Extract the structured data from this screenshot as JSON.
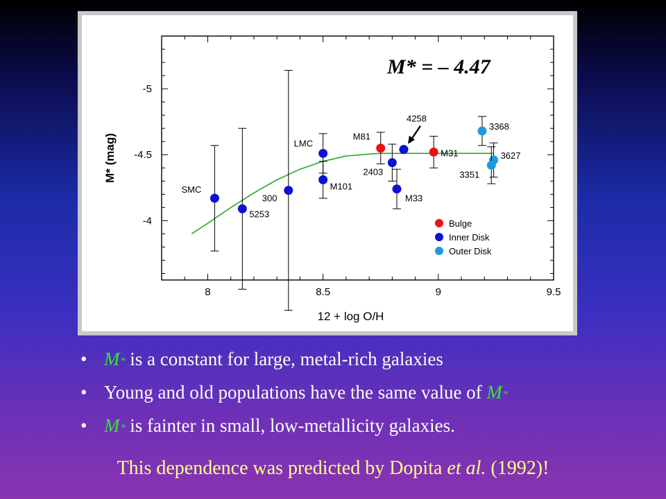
{
  "chart_data": {
    "type": "scatter",
    "annotation": "M* = – 4.47",
    "xlabel": "12 + log O/H",
    "ylabel": "M* (mag)",
    "xlim": [
      7.8,
      9.5
    ],
    "ylim": [
      -3.55,
      -5.4
    ],
    "xticks": [
      8,
      8.5,
      9,
      9.5
    ],
    "xtick_labels": [
      "8",
      "8.5",
      "9",
      "9.5"
    ],
    "yticks": [
      -5,
      -4.5,
      -4
    ],
    "ytick_labels": [
      "-5",
      "-4.5",
      "-4"
    ],
    "series": [
      {
        "name": "Bulge",
        "color": "#ee1111",
        "points": [
          {
            "label": "M81",
            "x": 8.75,
            "y": -4.55,
            "yerr": 0.12
          },
          {
            "label": "M31",
            "x": 8.98,
            "y": -4.52,
            "yerr": 0.12
          }
        ]
      },
      {
        "name": "Inner Disk",
        "color": "#0a14d2",
        "points": [
          {
            "label": "SMC",
            "x": 8.03,
            "y": -4.17,
            "yerr": 0.4
          },
          {
            "label": "5253",
            "x": 8.15,
            "y": -4.09,
            "yerr": 0.61
          },
          {
            "label": "300",
            "x": 8.35,
            "y": -4.23,
            "yerr": 0.91
          },
          {
            "label": "LMC",
            "x": 8.5,
            "y": -4.51,
            "yerr": 0.15
          },
          {
            "label": "M101",
            "x": 8.5,
            "y": -4.31,
            "yerr": 0.14
          },
          {
            "label": "2403",
            "x": 8.8,
            "y": -4.44,
            "yerr": 0.14
          },
          {
            "label": "M33",
            "x": 8.82,
            "y": -4.24,
            "yerr": 0.15
          },
          {
            "label": "4258",
            "x": 8.85,
            "y": -4.54,
            "yerr": 0
          }
        ]
      },
      {
        "name": "Outer Disk",
        "color": "#1e9be0",
        "points": [
          {
            "label": "3368",
            "x": 9.19,
            "y": -4.68,
            "yerr": 0.11
          },
          {
            "label": "3627",
            "x": 9.24,
            "y": -4.46,
            "yerr": 0.13
          },
          {
            "label": "3351",
            "x": 9.23,
            "y": -4.42,
            "yerr": 0.14
          }
        ]
      }
    ],
    "fit": {
      "color": "#22aa22",
      "x": [
        7.93,
        8.0,
        8.1,
        8.2,
        8.3,
        8.4,
        8.5,
        8.6,
        8.7,
        8.75,
        9.0,
        9.24
      ],
      "y": [
        -3.9,
        -3.98,
        -4.1,
        -4.21,
        -4.31,
        -4.39,
        -4.45,
        -4.49,
        -4.505,
        -4.51,
        -4.51,
        -4.51
      ]
    },
    "legend": {
      "position": "bottom-right",
      "entries": [
        "Bulge",
        "Inner Disk",
        "Outer Disk"
      ]
    }
  },
  "bullets": [
    {
      "sym": "M",
      "sup": "*",
      "text": " is a constant for large, metal-rich galaxies"
    },
    {
      "text": "Young and old populations have the same value of ",
      "sym": "M",
      "sup": "*"
    },
    {
      "sym": "M",
      "sup": "*",
      "text": " is fainter in small, low-metallicity galaxies."
    }
  ],
  "bullet_marker": "•",
  "footer": {
    "before": "This dependence was predicted by Dopita ",
    "italic": "et al.",
    "after": " (1992)!"
  }
}
